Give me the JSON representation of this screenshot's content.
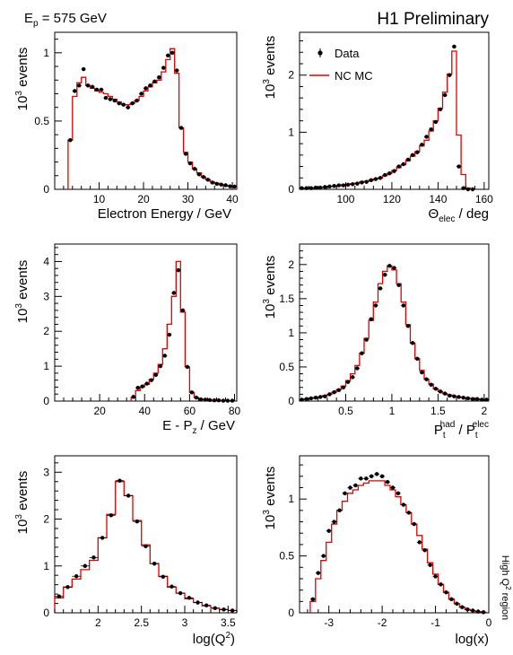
{
  "header": {
    "beam_label": "E",
    "beam_sub": "p",
    "beam_value": " = 575 GeV",
    "preliminary": "H1 Preliminary"
  },
  "side_label": {
    "text": "High Q",
    "sup": "2",
    "suffix": " region"
  },
  "colors": {
    "mc": "#e00000",
    "data": "#000000",
    "axis": "#000000"
  },
  "legend": {
    "data": "Data",
    "mc": "NC MC",
    "placement": "top-left of panel 2"
  },
  "chart_data": [
    {
      "id": "electron-energy",
      "type": "bar",
      "xlim": [
        0,
        41
      ],
      "ylim": [
        0,
        1.15
      ],
      "xticks": [
        10,
        20,
        30,
        40
      ],
      "yticks": [
        0,
        0.5,
        1
      ],
      "xtick_labels": [
        "10",
        "20",
        "30",
        "40"
      ],
      "ytick_labels": [
        "0",
        "0.5",
        "1"
      ],
      "xlabel": "Electron Energy / GeV",
      "ylabel": "10^3 events",
      "x": [
        3.5,
        4.5,
        5.5,
        6.5,
        7.5,
        8.5,
        9.5,
        10.5,
        11.5,
        12.5,
        13.5,
        14.5,
        15.5,
        16.5,
        17.5,
        18.5,
        19.5,
        20.5,
        21.5,
        22.5,
        23.5,
        24.5,
        25.5,
        26.5,
        27.5,
        28.5,
        29.5,
        30.5,
        31.5,
        32.5,
        33.5,
        34.5,
        35.5,
        36.5,
        37.5,
        38.5,
        39.5,
        40.5
      ],
      "mc": [
        0.36,
        0.68,
        0.78,
        0.82,
        0.76,
        0.74,
        0.72,
        0.71,
        0.7,
        0.68,
        0.66,
        0.64,
        0.62,
        0.62,
        0.63,
        0.65,
        0.68,
        0.72,
        0.75,
        0.78,
        0.8,
        0.86,
        0.95,
        1.03,
        0.85,
        0.45,
        0.27,
        0.2,
        0.15,
        0.12,
        0.09,
        0.07,
        0.055,
        0.045,
        0.035,
        0.028,
        0.022,
        0.018
      ],
      "data": [
        0.36,
        0.72,
        0.76,
        0.88,
        0.76,
        0.75,
        0.73,
        0.73,
        0.67,
        0.66,
        0.65,
        0.63,
        0.62,
        0.6,
        0.63,
        0.65,
        0.7,
        0.74,
        0.76,
        0.79,
        0.82,
        0.89,
        0.98,
        1.0,
        0.87,
        0.45,
        0.26,
        0.19,
        0.15,
        0.11,
        0.09,
        0.07,
        0.05,
        0.04,
        0.035,
        0.03,
        0.022,
        0.02
      ]
    },
    {
      "id": "electron-theta",
      "type": "bar",
      "xlim": [
        80,
        162
      ],
      "ylim": [
        0,
        2.75
      ],
      "xticks": [
        100,
        120,
        140,
        160
      ],
      "yticks": [
        0,
        1,
        2
      ],
      "xtick_labels": [
        "100",
        "120",
        "140",
        "160"
      ],
      "ytick_labels": [
        "0",
        "1",
        "2"
      ],
      "xlabel": "Θelec / deg",
      "ylabel": "10^3 events",
      "x": [
        81,
        83,
        85,
        87,
        89,
        91,
        93,
        95,
        97,
        99,
        101,
        103,
        105,
        107,
        109,
        111,
        113,
        115,
        117,
        119,
        121,
        123,
        125,
        127,
        129,
        131,
        133,
        135,
        137,
        139,
        141,
        143,
        145,
        147,
        149,
        151,
        153,
        155
      ],
      "mc": [
        0.02,
        0.02,
        0.02,
        0.03,
        0.03,
        0.04,
        0.05,
        0.05,
        0.06,
        0.08,
        0.09,
        0.1,
        0.11,
        0.13,
        0.14,
        0.16,
        0.18,
        0.2,
        0.24,
        0.28,
        0.33,
        0.38,
        0.43,
        0.5,
        0.58,
        0.66,
        0.76,
        0.86,
        1.02,
        1.2,
        1.42,
        1.7,
        2.02,
        2.42,
        0.95,
        0.26,
        0.02,
        0.0
      ],
      "data": [
        0.02,
        0.02,
        0.02,
        0.03,
        0.03,
        0.04,
        0.05,
        0.06,
        0.07,
        0.07,
        0.08,
        0.09,
        0.1,
        0.12,
        0.13,
        0.16,
        0.18,
        0.2,
        0.25,
        0.28,
        0.32,
        0.4,
        0.44,
        0.52,
        0.6,
        0.65,
        0.78,
        0.92,
        1.05,
        1.18,
        1.4,
        1.65,
        2.0,
        2.5,
        0.4,
        0.02,
        0.0,
        0.0
      ]
    },
    {
      "id": "e-minus-pz",
      "type": "bar",
      "xlim": [
        0,
        81
      ],
      "ylim": [
        0,
        4.5
      ],
      "xticks": [
        20,
        40,
        60,
        80
      ],
      "yticks": [
        0,
        1,
        2,
        3,
        4
      ],
      "xtick_labels": [
        "20",
        "40",
        "60",
        "80"
      ],
      "ytick_labels": [
        "0",
        "1",
        "2",
        "3",
        "4"
      ],
      "xlabel": "E - Pz / GeV",
      "ylabel": "10^3 events",
      "x": [
        35,
        37,
        39,
        41,
        43,
        45,
        47,
        49,
        51,
        53,
        55,
        57,
        59,
        61,
        63,
        65,
        67,
        69,
        71,
        73,
        75,
        77,
        79
      ],
      "mc": [
        0.1,
        0.3,
        0.4,
        0.48,
        0.62,
        0.8,
        1.05,
        1.5,
        2.2,
        3.0,
        4.0,
        2.55,
        0.98,
        0.25,
        0.1,
        0.06,
        0.04,
        0.03,
        0.02,
        0.02,
        0.01,
        0.01,
        0.01
      ],
      "data": [
        0.12,
        0.38,
        0.42,
        0.5,
        0.6,
        0.75,
        1.0,
        1.3,
        1.9,
        3.1,
        3.75,
        2.6,
        0.98,
        0.25,
        0.1,
        0.05,
        0.04,
        0.03,
        0.02,
        0.02,
        0.01,
        0.01,
        0.01
      ]
    },
    {
      "id": "pt-balance",
      "type": "bar",
      "xlim": [
        0,
        2.05
      ],
      "ylim": [
        0,
        2.3
      ],
      "xticks": [
        0.5,
        1,
        1.5,
        2
      ],
      "yticks": [
        0,
        0.5,
        1,
        1.5,
        2
      ],
      "xtick_labels": [
        "0.5",
        "1",
        "1.5",
        "2"
      ],
      "ytick_labels": [
        "0",
        "0.5",
        "1",
        "1.5",
        "2"
      ],
      "xlabel": "Pt had / Pt elec",
      "ylabel": "10^3 events",
      "x": [
        0.025,
        0.075,
        0.125,
        0.175,
        0.225,
        0.275,
        0.325,
        0.375,
        0.425,
        0.475,
        0.525,
        0.575,
        0.625,
        0.675,
        0.725,
        0.775,
        0.825,
        0.875,
        0.925,
        0.975,
        1.025,
        1.075,
        1.125,
        1.175,
        1.225,
        1.275,
        1.325,
        1.375,
        1.425,
        1.475,
        1.525,
        1.575,
        1.625,
        1.675,
        1.725,
        1.775,
        1.825,
        1.875,
        1.925,
        1.975,
        2.025
      ],
      "mc": [
        0.02,
        0.03,
        0.04,
        0.05,
        0.06,
        0.08,
        0.1,
        0.13,
        0.17,
        0.22,
        0.3,
        0.4,
        0.52,
        0.7,
        0.92,
        1.18,
        1.45,
        1.72,
        1.9,
        1.98,
        1.92,
        1.72,
        1.45,
        1.12,
        0.85,
        0.62,
        0.45,
        0.32,
        0.25,
        0.18,
        0.14,
        0.11,
        0.09,
        0.07,
        0.06,
        0.05,
        0.04,
        0.03,
        0.03,
        0.02,
        0.02
      ],
      "data": [
        0.02,
        0.03,
        0.04,
        0.05,
        0.06,
        0.07,
        0.1,
        0.13,
        0.16,
        0.2,
        0.28,
        0.35,
        0.48,
        0.7,
        0.9,
        1.2,
        1.4,
        1.65,
        1.85,
        1.98,
        1.95,
        1.7,
        1.4,
        1.1,
        0.85,
        0.62,
        0.42,
        0.32,
        0.24,
        0.18,
        0.14,
        0.11,
        0.08,
        0.07,
        0.06,
        0.05,
        0.04,
        0.03,
        0.03,
        0.02,
        0.02
      ]
    },
    {
      "id": "log-q2",
      "type": "bar",
      "xlim": [
        1.5,
        3.6
      ],
      "ylim": [
        0,
        3.35
      ],
      "xticks": [
        2,
        2.5,
        3,
        3.5
      ],
      "yticks": [
        0,
        1,
        2,
        3
      ],
      "xtick_labels": [
        "2",
        "2.5",
        "3",
        "3.5"
      ],
      "ytick_labels": [
        "0",
        "1",
        "2",
        "3"
      ],
      "xlabel": "log(Q2)",
      "ylabel": "10^3 events",
      "x": [
        1.55,
        1.65,
        1.75,
        1.85,
        1.95,
        2.05,
        2.15,
        2.25,
        2.35,
        2.45,
        2.55,
        2.65,
        2.75,
        2.85,
        2.95,
        3.05,
        3.15,
        3.25,
        3.35,
        3.45,
        3.55
      ],
      "mc": [
        0.32,
        0.55,
        0.72,
        0.92,
        1.12,
        1.6,
        2.1,
        2.8,
        2.5,
        1.97,
        1.45,
        1.05,
        0.78,
        0.55,
        0.42,
        0.3,
        0.22,
        0.15,
        0.1,
        0.07,
        0.05
      ],
      "data": [
        0.35,
        0.55,
        0.78,
        1.0,
        1.18,
        1.6,
        2.08,
        2.82,
        2.5,
        1.95,
        1.42,
        1.05,
        0.77,
        0.56,
        0.42,
        0.32,
        0.22,
        0.16,
        0.1,
        0.07,
        0.05
      ]
    },
    {
      "id": "log-x",
      "type": "bar",
      "xlim": [
        -3.55,
        0
      ],
      "ylim": [
        0,
        1.38
      ],
      "xticks": [
        -3,
        -2,
        -1,
        0
      ],
      "yticks": [
        0,
        0.5,
        1
      ],
      "xtick_labels": [
        "-3",
        "-2",
        "-1",
        "0"
      ],
      "ytick_labels": [
        "0",
        "0.5",
        "1"
      ],
      "xlabel": "log(x)",
      "ylabel": "10^3 events",
      "x": [
        -3.3,
        -3.2,
        -3.1,
        -3.0,
        -2.9,
        -2.8,
        -2.7,
        -2.6,
        -2.5,
        -2.4,
        -2.3,
        -2.2,
        -2.1,
        -2.0,
        -1.9,
        -1.8,
        -1.7,
        -1.6,
        -1.5,
        -1.4,
        -1.3,
        -1.2,
        -1.1,
        -1.0,
        -0.9,
        -0.8,
        -0.7,
        -0.6,
        -0.5,
        -0.4,
        -0.3,
        -0.2,
        -0.1
      ],
      "mc": [
        0.1,
        0.3,
        0.46,
        0.62,
        0.78,
        0.9,
        0.98,
        1.05,
        1.08,
        1.12,
        1.14,
        1.16,
        1.16,
        1.16,
        1.12,
        1.08,
        1.02,
        0.95,
        0.88,
        0.78,
        0.68,
        0.56,
        0.44,
        0.34,
        0.25,
        0.18,
        0.12,
        0.08,
        0.05,
        0.03,
        0.02,
        0.01,
        0.005
      ],
      "data": [
        0.12,
        0.35,
        0.5,
        0.72,
        0.8,
        0.9,
        1.05,
        1.1,
        1.12,
        1.18,
        1.18,
        1.2,
        1.22,
        1.2,
        1.15,
        1.1,
        1.05,
        0.95,
        0.88,
        0.78,
        0.62,
        0.55,
        0.42,
        0.32,
        0.25,
        0.18,
        0.12,
        0.08,
        0.05,
        0.03,
        0.02,
        0.01,
        0.005
      ]
    }
  ]
}
